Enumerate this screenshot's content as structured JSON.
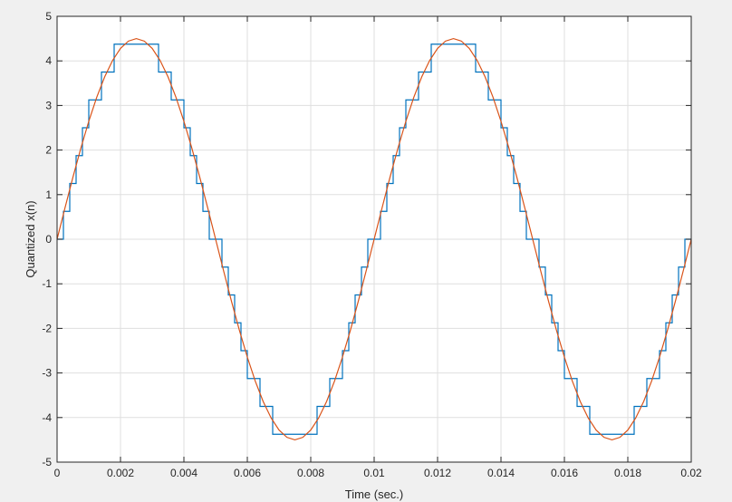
{
  "chart_data": {
    "type": "line",
    "title": "",
    "xlabel": "Time (sec.)",
    "ylabel": "Quantized x(n)",
    "xlim": [
      0,
      0.02
    ],
    "ylim": [
      -5,
      5
    ],
    "grid": true,
    "legend": "none",
    "x_ticks": [
      {
        "value": 0,
        "label": "0"
      },
      {
        "value": 0.002,
        "label": "0.002"
      },
      {
        "value": 0.004,
        "label": "0.004"
      },
      {
        "value": 0.006,
        "label": "0.006"
      },
      {
        "value": 0.008,
        "label": "0.008"
      },
      {
        "value": 0.01,
        "label": "0.01"
      },
      {
        "value": 0.012,
        "label": "0.012"
      },
      {
        "value": 0.014,
        "label": "0.014"
      },
      {
        "value": 0.016,
        "label": "0.016"
      },
      {
        "value": 0.018,
        "label": "0.018"
      },
      {
        "value": 0.02,
        "label": "0.02"
      }
    ],
    "y_ticks": [
      {
        "value": 5,
        "label": "5"
      },
      {
        "value": 4,
        "label": "4"
      },
      {
        "value": 3,
        "label": "3"
      },
      {
        "value": 2,
        "label": "2"
      },
      {
        "value": 1,
        "label": "1"
      },
      {
        "value": 0,
        "label": "0"
      },
      {
        "value": -1,
        "label": "-1"
      },
      {
        "value": -2,
        "label": "-2"
      },
      {
        "value": -3,
        "label": "-3"
      },
      {
        "value": -4,
        "label": "-4"
      },
      {
        "value": -5,
        "label": "-5"
      }
    ],
    "series": [
      {
        "style": "stairs",
        "color": "#0072BD",
        "x": [
          0,
          0.0002,
          0.0004,
          0.0006,
          0.0008,
          0.001,
          0.0012,
          0.0014,
          0.0016,
          0.0018,
          0.002,
          0.0022,
          0.0024,
          0.0026,
          0.0028,
          0.003,
          0.0032,
          0.0034,
          0.0036,
          0.0038,
          0.004,
          0.0042,
          0.0044,
          0.0046,
          0.0048,
          0.005,
          0.0052,
          0.0054,
          0.0056,
          0.0058,
          0.006,
          0.0062,
          0.0064,
          0.0066,
          0.0068,
          0.007,
          0.0072,
          0.0074,
          0.0076,
          0.0078,
          0.008,
          0.0082,
          0.0084,
          0.0086,
          0.0088,
          0.009,
          0.0092,
          0.0094,
          0.0096,
          0.0098,
          0.01,
          0.0102,
          0.0104,
          0.0106,
          0.0108,
          0.011,
          0.0112,
          0.0114,
          0.0116,
          0.0118,
          0.012,
          0.0122,
          0.0124,
          0.0126,
          0.0128,
          0.013,
          0.0132,
          0.0134,
          0.0136,
          0.0138,
          0.014,
          0.0142,
          0.0144,
          0.0146,
          0.0148,
          0.015,
          0.0152,
          0.0154,
          0.0156,
          0.0158,
          0.016,
          0.0162,
          0.0164,
          0.0166,
          0.0168,
          0.017,
          0.0172,
          0.0174,
          0.0176,
          0.0178,
          0.018,
          0.0182,
          0.0184,
          0.0186,
          0.0188,
          0.019,
          0.0192,
          0.0194,
          0.0196,
          0.0198,
          0.02
        ],
        "y": [
          0,
          0.625,
          1.25,
          1.875,
          2.5,
          3.125,
          3.125,
          3.75,
          3.75,
          4.375,
          4.375,
          4.375,
          4.375,
          4.375,
          4.375,
          4.375,
          3.75,
          3.75,
          3.125,
          3.125,
          2.5,
          1.875,
          1.25,
          0.625,
          0,
          0,
          -0.625,
          -1.25,
          -1.875,
          -2.5,
          -3.125,
          -3.125,
          -3.75,
          -3.75,
          -4.375,
          -4.375,
          -4.375,
          -4.375,
          -4.375,
          -4.375,
          -4.375,
          -3.75,
          -3.75,
          -3.125,
          -3.125,
          -2.5,
          -1.875,
          -1.25,
          -0.625,
          0,
          0,
          0.625,
          1.25,
          1.875,
          2.5,
          3.125,
          3.125,
          3.75,
          3.75,
          4.375,
          4.375,
          4.375,
          4.375,
          4.375,
          4.375,
          4.375,
          3.75,
          3.75,
          3.125,
          3.125,
          2.5,
          1.875,
          1.25,
          0.625,
          0,
          0,
          -0.625,
          -1.25,
          -1.875,
          -2.5,
          -3.125,
          -3.125,
          -3.75,
          -3.75,
          -4.375,
          -4.375,
          -4.375,
          -4.375,
          -4.375,
          -4.375,
          -4.375,
          -3.75,
          -3.75,
          -3.125,
          -3.125,
          -2.5,
          -1.875,
          -1.25,
          -0.625,
          0,
          0
        ]
      },
      {
        "style": "line",
        "color": "#D95319",
        "x": [
          0,
          0.00025,
          0.0005,
          0.00075,
          0.001,
          0.00125,
          0.0015,
          0.00175,
          0.002,
          0.00225,
          0.0025,
          0.00275,
          0.003,
          0.00325,
          0.0035,
          0.00375,
          0.004,
          0.00425,
          0.0045,
          0.00475,
          0.005,
          0.00525,
          0.0055,
          0.00575,
          0.006,
          0.00625,
          0.0065,
          0.00675,
          0.007,
          0.00725,
          0.0075,
          0.00775,
          0.008,
          0.00825,
          0.0085,
          0.00875,
          0.009,
          0.00925,
          0.0095,
          0.00975,
          0.01,
          0.01025,
          0.0105,
          0.01075,
          0.011,
          0.01125,
          0.0115,
          0.01175,
          0.012,
          0.01225,
          0.0125,
          0.01275,
          0.013,
          0.01325,
          0.0135,
          0.01375,
          0.014,
          0.01425,
          0.0145,
          0.01475,
          0.015,
          0.01525,
          0.0155,
          0.01575,
          0.016,
          0.01625,
          0.0165,
          0.01675,
          0.017,
          0.01725,
          0.0175,
          0.01775,
          0.018,
          0.01825,
          0.0185,
          0.01875,
          0.019,
          0.01925,
          0.0195,
          0.01975,
          0.02
        ],
        "y": [
          0,
          0.704,
          1.391,
          2.043,
          2.645,
          3.182,
          3.641,
          4.009,
          4.28,
          4.444,
          4.5,
          4.444,
          4.28,
          4.009,
          3.641,
          3.182,
          2.645,
          2.043,
          1.391,
          0.704,
          0,
          -0.704,
          -1.391,
          -2.043,
          -2.645,
          -3.182,
          -3.641,
          -4.009,
          -4.28,
          -4.444,
          -4.5,
          -4.444,
          -4.28,
          -4.009,
          -3.641,
          -3.182,
          -2.645,
          -2.043,
          -1.391,
          -0.704,
          0,
          0.704,
          1.391,
          2.043,
          2.645,
          3.182,
          3.641,
          4.009,
          4.28,
          4.444,
          4.5,
          4.444,
          4.28,
          4.009,
          3.641,
          3.182,
          2.645,
          2.043,
          1.391,
          0.704,
          0,
          -0.704,
          -1.391,
          -2.043,
          -2.645,
          -3.182,
          -3.641,
          -4.009,
          -4.28,
          -4.444,
          -4.5,
          -4.444,
          -4.28,
          -4.009,
          -3.641,
          -3.182,
          -2.645,
          -2.043,
          -1.391,
          -0.704,
          0
        ]
      }
    ]
  }
}
